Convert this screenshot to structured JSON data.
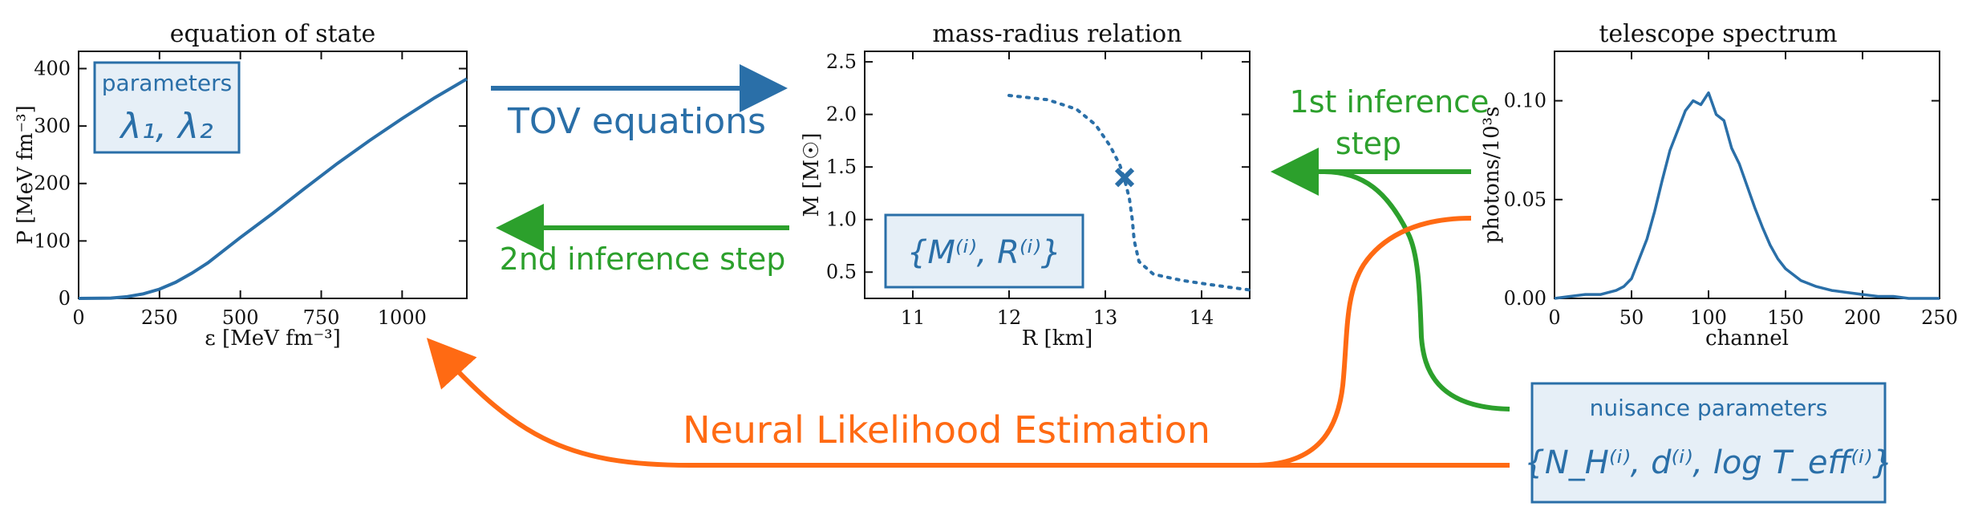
{
  "colors": {
    "blue": "#2a6fa8",
    "green": "#2ca02c",
    "orange": "#ff6a13",
    "box_fill": "#e6eff7"
  },
  "panels": {
    "eos": {
      "title": "equation of state",
      "xlabel": "ε [MeV fm⁻³]",
      "ylabel": "P [MeV fm⁻³]",
      "xticks": [
        "0",
        "250",
        "500",
        "750",
        "1000"
      ],
      "yticks": [
        "0",
        "100",
        "200",
        "300",
        "400"
      ],
      "box_title": "parameters",
      "box_value": "λ₁, λ₂"
    },
    "mr": {
      "title": "mass-radius relation",
      "xlabel": "R [km]",
      "ylabel": "M [M☉]",
      "xticks": [
        "11",
        "12",
        "13",
        "14"
      ],
      "yticks": [
        "0.5",
        "1.0",
        "1.5",
        "2.0",
        "2.5"
      ],
      "box_value": "{M⁽ⁱ⁾, R⁽ⁱ⁾}"
    },
    "spec": {
      "title": "telescope spectrum",
      "xlabel": "channel",
      "ylabel": "photons/10³s",
      "xticks": [
        "0",
        "50",
        "100",
        "150",
        "200",
        "250"
      ],
      "yticks": [
        "0.00",
        "0.05",
        "0.10"
      ]
    }
  },
  "arrows": {
    "tov": "TOV equations",
    "second": "2nd inference step",
    "first_line1": "1st inference",
    "first_line2": "step",
    "nle": "Neural Likelihood Estimation"
  },
  "nuisance": {
    "title": "nuisance parameters",
    "value": "{N_H⁽ⁱ⁾, d⁽ⁱ⁾, log T_eff⁽ⁱ⁾}"
  },
  "chart_data": [
    {
      "type": "line",
      "title": "equation of state",
      "xlabel": "ε [MeV fm⁻³]",
      "ylabel": "P [MeV fm⁻³]",
      "xlim": [
        0,
        1200
      ],
      "ylim": [
        0,
        430
      ],
      "series": [
        {
          "x": [
            0,
            100,
            150,
            200,
            250,
            300,
            350,
            400,
            450,
            500,
            600,
            700,
            800,
            900,
            1000,
            1100,
            1200
          ],
          "y": [
            0,
            0.5,
            3,
            8,
            16,
            28,
            44,
            62,
            84,
            106,
            148,
            192,
            235,
            275,
            313,
            349,
            382
          ]
        }
      ]
    },
    {
      "type": "line",
      "title": "mass-radius relation",
      "xlabel": "R [km]",
      "ylabel": "M [M☉]",
      "xlim": [
        10.5,
        14.5
      ],
      "ylim": [
        0.25,
        2.6
      ],
      "series": [
        {
          "x": [
            12.0,
            12.4,
            12.7,
            12.9,
            13.05,
            13.15,
            13.2,
            13.25,
            13.28,
            13.3,
            13.35,
            13.5,
            13.8,
            14.1,
            14.5
          ],
          "y": [
            2.18,
            2.14,
            2.05,
            1.9,
            1.7,
            1.52,
            1.38,
            1.2,
            1.0,
            0.8,
            0.6,
            0.48,
            0.42,
            0.38,
            0.33
          ]
        }
      ],
      "marker": {
        "x": 13.2,
        "y": 1.4
      }
    },
    {
      "type": "line",
      "title": "telescope spectrum",
      "xlabel": "channel",
      "ylabel": "photons/10³s",
      "xlim": [
        0,
        250
      ],
      "ylim": [
        0,
        0.125
      ],
      "series": [
        {
          "x": [
            0,
            10,
            20,
            30,
            40,
            45,
            50,
            55,
            60,
            65,
            70,
            75,
            80,
            85,
            90,
            95,
            100,
            105,
            110,
            115,
            120,
            125,
            130,
            135,
            140,
            145,
            150,
            160,
            170,
            180,
            190,
            200,
            210,
            220,
            230,
            240,
            250
          ],
          "y": [
            0.0,
            0.001,
            0.002,
            0.002,
            0.004,
            0.006,
            0.01,
            0.02,
            0.03,
            0.044,
            0.06,
            0.075,
            0.085,
            0.095,
            0.1,
            0.098,
            0.104,
            0.093,
            0.09,
            0.076,
            0.068,
            0.057,
            0.046,
            0.036,
            0.027,
            0.02,
            0.015,
            0.009,
            0.006,
            0.004,
            0.003,
            0.002,
            0.001,
            0.001,
            0.0,
            0.0,
            0.0
          ]
        }
      ]
    }
  ]
}
